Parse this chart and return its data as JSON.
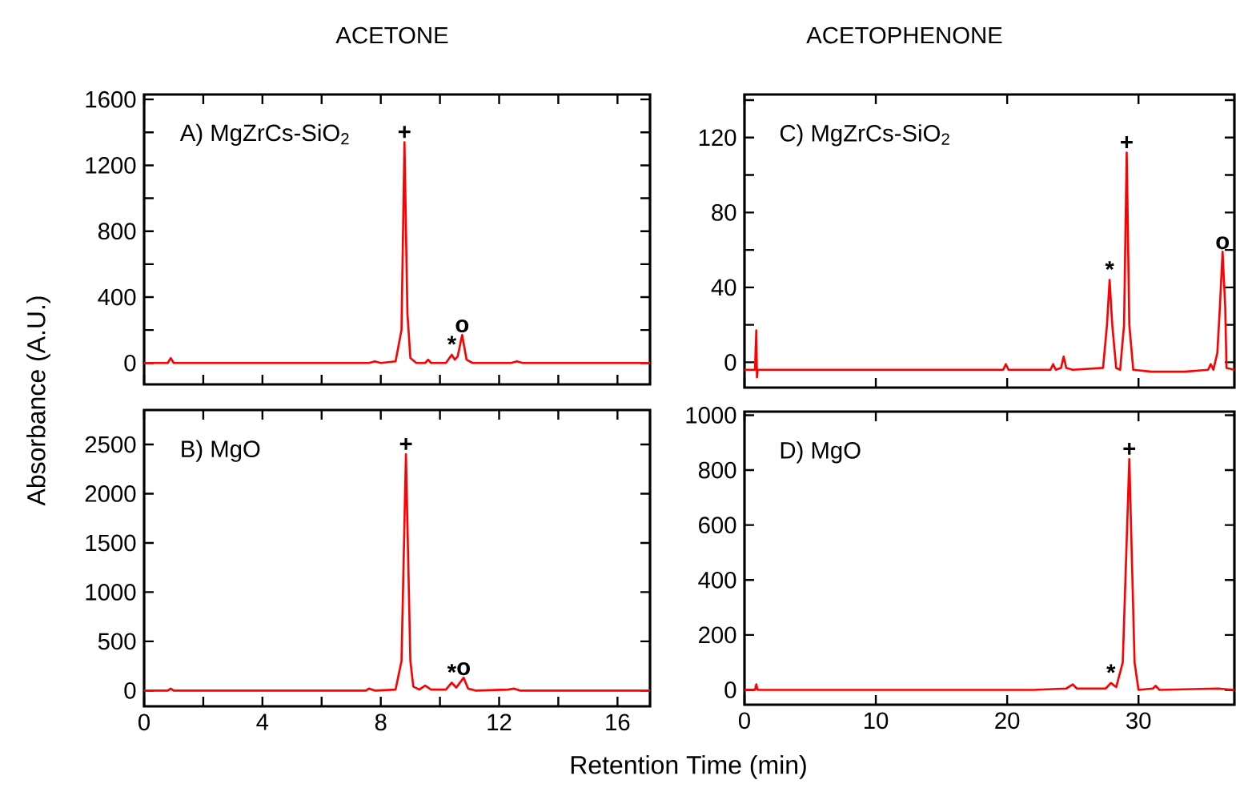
{
  "chart_data": [
    {
      "type": "line",
      "title": "ACETONE",
      "ylabel": "Absorbance (A.U.)",
      "tick_labels": "y",
      "xlim": [
        0,
        17.1
      ],
      "xticks": [
        0,
        {
          "value": 2,
          "label": null
        },
        4,
        {
          "value": 6,
          "label": null
        },
        8,
        {
          "value": 10,
          "label": null
        },
        12,
        {
          "value": 14,
          "label": null
        },
        16
      ],
      "ylim": [
        -130,
        1630
      ],
      "yticks": [
        0,
        {
          "value": 200,
          "label": null
        },
        400,
        {
          "value": 600,
          "label": null
        },
        800,
        {
          "value": 1000,
          "label": null
        },
        1200,
        {
          "value": 1400,
          "label": null
        },
        1600
      ],
      "annotations": [
        "A) MgZrCs-SiO$_{2}$",
        {
          "text": "+",
          "x": 8.8,
          "y": 1340
        },
        {
          "text": "*",
          "x": 10.4,
          "y": 50
        },
        {
          "text": "o",
          "x": 10.75,
          "y": 170
        }
      ],
      "series": [
        {
          "color": "#ff0000",
          "x": [
            0,
            0.8,
            0.9,
            1.0,
            7.6,
            7.8,
            8.0,
            8.5,
            8.7,
            8.8,
            8.9,
            9.0,
            9.2,
            9.5,
            9.6,
            9.7,
            10.2,
            10.4,
            10.5,
            10.6,
            10.75,
            10.9,
            11.1,
            12.4,
            12.6,
            12.8,
            17.1
          ],
          "values": [
            0,
            0,
            30,
            0,
            0,
            10,
            0,
            10,
            200,
            1340,
            300,
            30,
            0,
            0,
            20,
            0,
            0,
            50,
            20,
            40,
            170,
            20,
            0,
            0,
            10,
            0,
            0
          ]
        }
      ]
    },
    {
      "type": "line",
      "xlabel": "Retention Time (min)",
      "xlim": [
        0,
        17.1
      ],
      "xticks": [
        0,
        {
          "value": 2,
          "label": null
        },
        4,
        {
          "value": 6,
          "label": null
        },
        8,
        {
          "value": 10,
          "label": null
        },
        12,
        {
          "value": 14,
          "label": null
        },
        16
      ],
      "ylim": [
        -160,
        2850
      ],
      "yticks": [
        0,
        500,
        1000,
        1500,
        2000,
        2500
      ],
      "annotations": [
        "B) MgO",
        {
          "text": "+",
          "x": 8.85,
          "y": 2400
        },
        {
          "text": "*",
          "x": 10.4,
          "y": 80
        },
        {
          "text": "o",
          "x": 10.8,
          "y": 130
        }
      ],
      "series": [
        {
          "color": "#ff0000",
          "x": [
            0,
            0.8,
            0.9,
            1.0,
            7.5,
            7.6,
            7.8,
            8.5,
            8.7,
            8.85,
            9.0,
            9.1,
            9.3,
            9.5,
            9.7,
            10.2,
            10.4,
            10.55,
            10.8,
            10.95,
            11.2,
            12.3,
            12.5,
            12.7,
            17.1
          ],
          "values": [
            0,
            0,
            20,
            0,
            0,
            20,
            0,
            10,
            300,
            2400,
            300,
            40,
            10,
            50,
            10,
            10,
            80,
            30,
            130,
            20,
            0,
            10,
            20,
            0,
            0
          ]
        }
      ]
    },
    {
      "type": "line",
      "title": "ACETOPHENONE",
      "tick_labels": "y",
      "xlim": [
        0,
        37.3
      ],
      "xticks": [
        0,
        10,
        20,
        30
      ],
      "ylim": [
        -13.5,
        143
      ],
      "yticks": [
        0,
        {
          "value": 20,
          "label": null
        },
        40,
        {
          "value": 60,
          "label": null
        },
        80,
        {
          "value": 100,
          "label": null
        },
        120,
        {
          "value": 140,
          "label": null
        }
      ],
      "annotations": [
        "C) MgZrCs-SiO$_{2}$",
        {
          "text": "*",
          "x": 27.8,
          "y": 44
        },
        {
          "text": "+",
          "x": 29.1,
          "y": 112
        },
        {
          "text": "o",
          "x": 36.4,
          "y": 59
        }
      ],
      "series": [
        {
          "color": "#ff0000",
          "x": [
            0,
            0.8,
            0.9,
            0.95,
            1.0,
            19.7,
            19.9,
            20.1,
            23.3,
            23.5,
            23.7,
            24.1,
            24.3,
            24.5,
            25.0,
            27.3,
            27.6,
            27.8,
            28.0,
            28.3,
            28.6,
            28.9,
            29.1,
            29.3,
            29.6,
            31.0,
            33.5,
            35.3,
            35.5,
            35.7,
            36.0,
            36.2,
            36.4,
            36.6,
            36.7,
            37.3
          ],
          "values": [
            -4,
            -4,
            17,
            -8,
            -4,
            -4,
            -1,
            -4,
            -4,
            -1,
            -4,
            -3,
            3,
            -3,
            -4,
            -3,
            20,
            44,
            20,
            -3,
            -4,
            20,
            112,
            20,
            -4,
            -5,
            -5,
            -4,
            -1,
            -4,
            5,
            30,
            59,
            30,
            -3,
            -4
          ]
        }
      ]
    },
    {
      "type": "line",
      "xlim": [
        0,
        37.3
      ],
      "xticks": [
        0,
        10,
        20,
        30
      ],
      "ylim": [
        -54,
        1013
      ],
      "yticks": [
        0,
        200,
        400,
        600,
        800,
        1000
      ],
      "annotations": [
        "D) MgO",
        {
          "text": "*",
          "x": 27.9,
          "y": 25
        },
        {
          "text": "+",
          "x": 29.3,
          "y": 840
        }
      ],
      "series": [
        {
          "color": "#ff0000",
          "x": [
            0,
            0.8,
            0.9,
            1.0,
            22,
            24.5,
            25.0,
            25.3,
            27.5,
            27.9,
            28.3,
            28.8,
            29.3,
            29.7,
            30.0,
            31.1,
            31.3,
            31.6,
            36,
            37.3
          ],
          "values": [
            0,
            0,
            20,
            0,
            0,
            5,
            20,
            5,
            5,
            25,
            10,
            100,
            840,
            100,
            0,
            5,
            15,
            0,
            5,
            0
          ]
        }
      ]
    }
  ]
}
